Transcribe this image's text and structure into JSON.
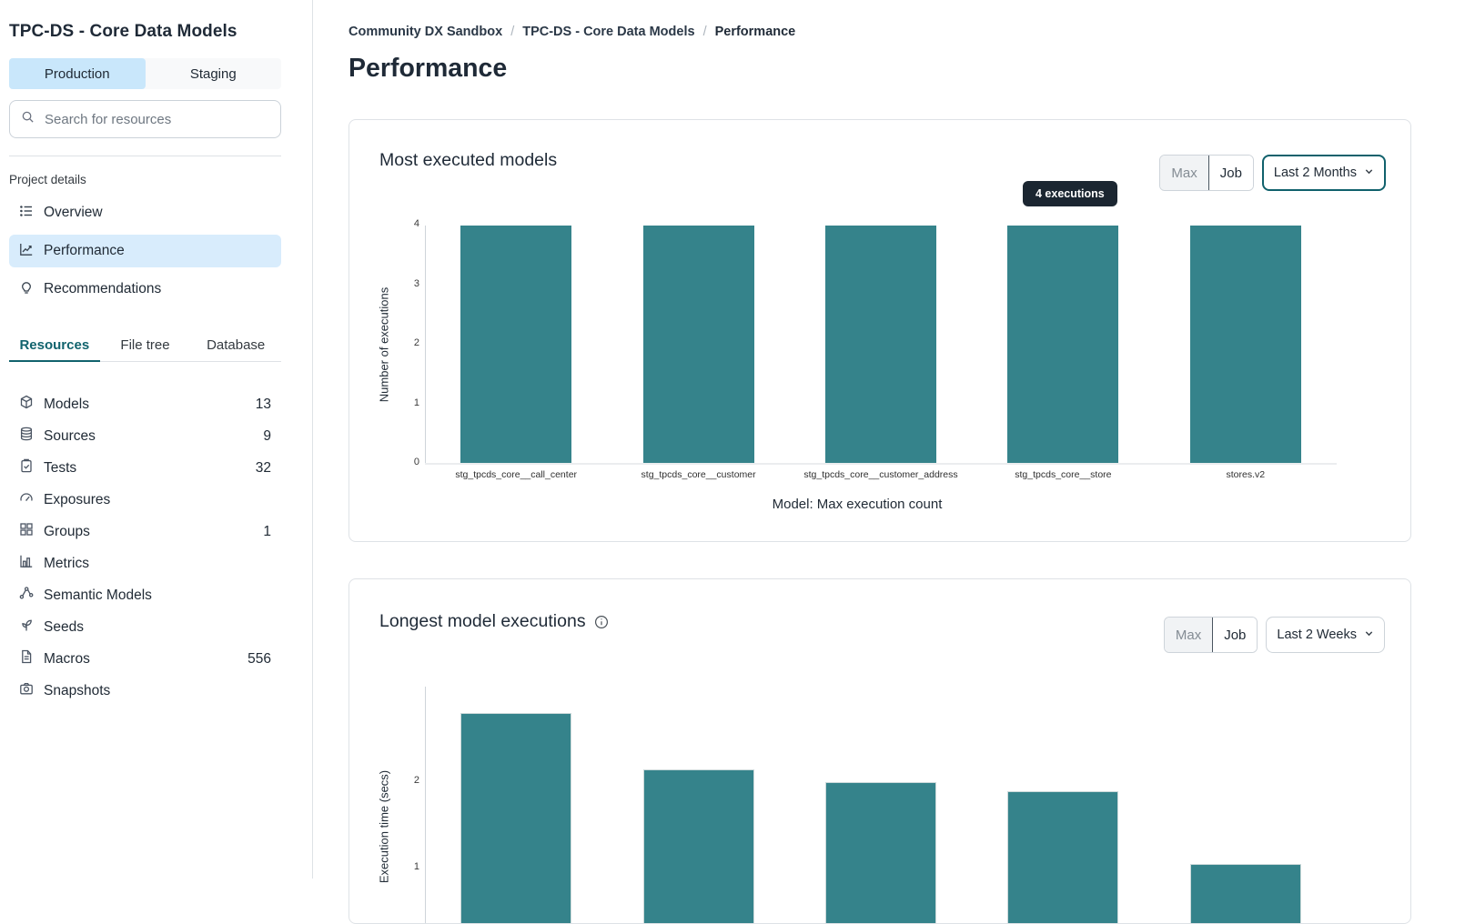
{
  "colors": {
    "bar": "#35838b",
    "accent_teal": "#11636d",
    "selected_blue_bg": "#d8ecfc",
    "env_selected_bg": "#c9e7fb",
    "tooltip_bg": "#1b2631"
  },
  "sidebar": {
    "title": "TPC-DS - Core Data Models",
    "environment_tabs": [
      {
        "label": "Production",
        "selected": true
      },
      {
        "label": "Staging",
        "selected": false
      }
    ],
    "search_placeholder": "Search for resources",
    "project_details_label": "Project details",
    "project_nav": [
      {
        "label": "Overview",
        "icon": "list-icon",
        "selected": false
      },
      {
        "label": "Performance",
        "icon": "chart-line-icon",
        "selected": true
      },
      {
        "label": "Recommendations",
        "icon": "lightbulb-icon",
        "selected": false
      }
    ],
    "resource_tabs": [
      {
        "label": "Resources",
        "selected": true
      },
      {
        "label": "File tree",
        "selected": false
      },
      {
        "label": "Database",
        "selected": false
      }
    ],
    "resources": [
      {
        "label": "Models",
        "count": "13",
        "icon": "cube-icon"
      },
      {
        "label": "Sources",
        "count": "9",
        "icon": "database-icon"
      },
      {
        "label": "Tests",
        "count": "32",
        "icon": "clipboard-check-icon"
      },
      {
        "label": "Exposures",
        "count": "",
        "icon": "gauge-icon"
      },
      {
        "label": "Groups",
        "count": "1",
        "icon": "grid-icon"
      },
      {
        "label": "Metrics",
        "count": "",
        "icon": "bar-chart-icon"
      },
      {
        "label": "Semantic Models",
        "count": "",
        "icon": "share-network-icon"
      },
      {
        "label": "Seeds",
        "count": "",
        "icon": "seedling-icon"
      },
      {
        "label": "Macros",
        "count": "556",
        "icon": "document-icon"
      },
      {
        "label": "Snapshots",
        "count": "",
        "icon": "camera-icon"
      }
    ]
  },
  "main": {
    "breadcrumb": [
      {
        "label": "Community DX Sandbox",
        "current": false
      },
      {
        "label": "TPC-DS - Core Data Models",
        "current": false
      },
      {
        "label": "Performance",
        "current": true
      }
    ],
    "page_title": "Performance"
  },
  "chart_data": [
    {
      "type": "bar",
      "title": "Most executed models",
      "categories": [
        "stg_tpcds_core__call_center",
        "stg_tpcds_core__customer",
        "stg_tpcds_core__customer_address",
        "stg_tpcds_core__store",
        "stores.v2"
      ],
      "values": [
        4,
        4,
        4,
        4,
        4
      ],
      "xlabel": "Model: Max execution count",
      "ylabel": "Number of executions",
      "ylim": [
        0,
        4
      ],
      "yticks": [
        0,
        1,
        2,
        3,
        4
      ],
      "grid": false,
      "legend": "none",
      "bar_color": "#35838b",
      "tooltip_label": "4 executions",
      "controls": {
        "aggregation_options": [
          "Max",
          "Job"
        ],
        "aggregation_selected": "Max",
        "time_range": "Last 2 Months"
      }
    },
    {
      "type": "bar",
      "title": "Longest model executions",
      "categories": [],
      "values": [
        2.8,
        2.15,
        2.0,
        1.9,
        1.05
      ],
      "xlabel": "",
      "ylabel": "Execution time (secs)",
      "ylim": [
        0,
        3
      ],
      "yticks": [
        1,
        2
      ],
      "grid": false,
      "legend": "none",
      "bar_color": "#35838b",
      "controls": {
        "aggregation_options": [
          "Max",
          "Job"
        ],
        "aggregation_selected": "Max",
        "time_range": "Last 2 Weeks"
      }
    }
  ]
}
